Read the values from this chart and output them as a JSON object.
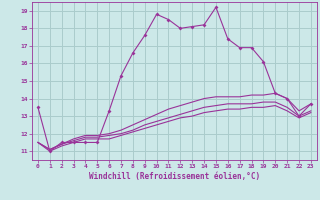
{
  "background_color": "#cce8e8",
  "grid_color": "#aacccc",
  "line_color": "#993399",
  "xlabel": "Windchill (Refroidissement éolien,°C)",
  "xlim": [
    -0.5,
    23.5
  ],
  "ylim": [
    10.5,
    19.5
  ],
  "xticks": [
    0,
    1,
    2,
    3,
    4,
    5,
    6,
    7,
    8,
    9,
    10,
    11,
    12,
    13,
    14,
    15,
    16,
    17,
    18,
    19,
    20,
    21,
    22,
    23
  ],
  "yticks": [
    11,
    12,
    13,
    14,
    15,
    16,
    17,
    18,
    19
  ],
  "series1_x": [
    0,
    1,
    2,
    3,
    4,
    5,
    6,
    7,
    8,
    9,
    10,
    11,
    12,
    13,
    14,
    15,
    16,
    17,
    18,
    19,
    20,
    21,
    22,
    23
  ],
  "series1_y": [
    13.5,
    11.0,
    11.5,
    11.5,
    11.5,
    11.5,
    13.3,
    15.3,
    16.6,
    17.6,
    18.8,
    18.5,
    18.0,
    18.1,
    18.2,
    19.2,
    17.4,
    16.9,
    16.9,
    16.1,
    14.3,
    14.0,
    13.0,
    13.7
  ],
  "series2_x": [
    0,
    1,
    2,
    3,
    4,
    5,
    6,
    7,
    8,
    9,
    10,
    11,
    12,
    13,
    14,
    15,
    16,
    17,
    18,
    19,
    20,
    21,
    22,
    23
  ],
  "series2_y": [
    11.5,
    11.1,
    11.4,
    11.7,
    11.9,
    11.9,
    12.0,
    12.2,
    12.5,
    12.8,
    13.1,
    13.4,
    13.6,
    13.8,
    14.0,
    14.1,
    14.1,
    14.1,
    14.2,
    14.2,
    14.3,
    14.0,
    13.3,
    13.7
  ],
  "series3_x": [
    0,
    1,
    2,
    3,
    4,
    5,
    6,
    7,
    8,
    9,
    10,
    11,
    12,
    13,
    14,
    15,
    16,
    17,
    18,
    19,
    20,
    21,
    22,
    23
  ],
  "series3_y": [
    11.5,
    11.1,
    11.4,
    11.6,
    11.8,
    11.8,
    11.9,
    12.0,
    12.2,
    12.5,
    12.7,
    12.9,
    13.1,
    13.3,
    13.5,
    13.6,
    13.7,
    13.7,
    13.7,
    13.8,
    13.8,
    13.5,
    13.0,
    13.3
  ],
  "series4_x": [
    0,
    1,
    2,
    3,
    4,
    5,
    6,
    7,
    8,
    9,
    10,
    11,
    12,
    13,
    14,
    15,
    16,
    17,
    18,
    19,
    20,
    21,
    22,
    23
  ],
  "series4_y": [
    11.5,
    11.0,
    11.3,
    11.5,
    11.7,
    11.7,
    11.7,
    11.9,
    12.1,
    12.3,
    12.5,
    12.7,
    12.9,
    13.0,
    13.2,
    13.3,
    13.4,
    13.4,
    13.5,
    13.5,
    13.6,
    13.3,
    12.9,
    13.2
  ]
}
